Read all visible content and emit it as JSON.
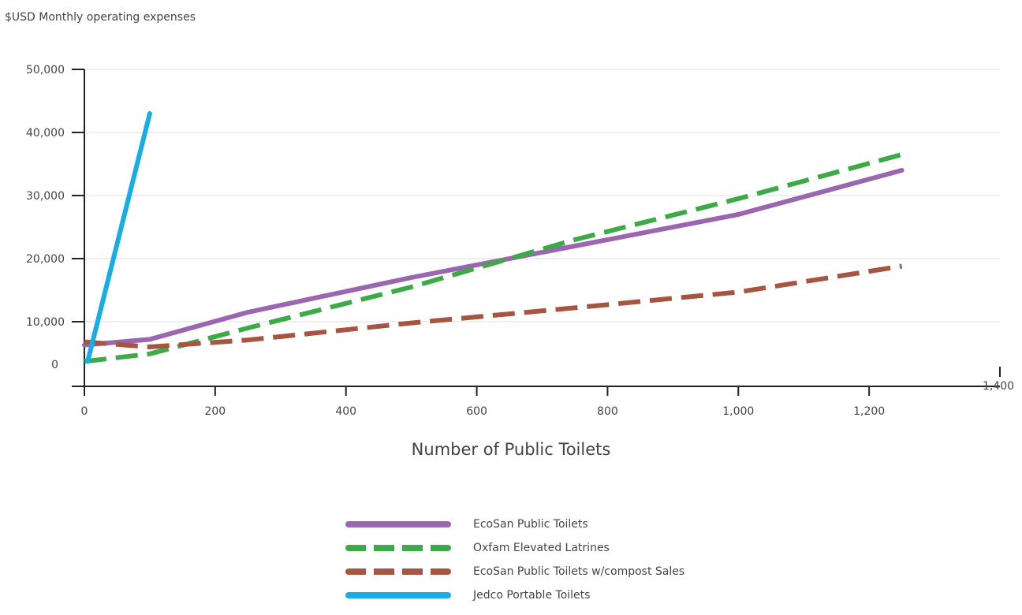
{
  "chart_data": {
    "type": "line",
    "ylabel": "$USD Monthly operating expenses",
    "xlabel": "Number of Public Toilets",
    "xlim": [
      0,
      1400
    ],
    "ylim": [
      0,
      50000
    ],
    "x_ticks": [
      0,
      200,
      400,
      600,
      800,
      1000,
      1200,
      1400
    ],
    "x_tick_labels": [
      "0",
      "200",
      "400",
      "600",
      "800",
      "1,000",
      "1,200",
      "1,400"
    ],
    "y_ticks": [
      0,
      10000,
      20000,
      30000,
      40000,
      50000
    ],
    "y_tick_labels": [
      "0",
      "10,000",
      "20,000",
      "30,000",
      "40,000",
      "50,000"
    ],
    "grid": true,
    "legend_position": "bottom-center",
    "series": [
      {
        "name": "EcoSan Public Toilets",
        "color": "#9b66b0",
        "style": "solid",
        "points": [
          [
            0,
            6300
          ],
          [
            100,
            7200
          ],
          [
            250,
            11500
          ],
          [
            500,
            17000
          ],
          [
            750,
            22000
          ],
          [
            1000,
            27000
          ],
          [
            1250,
            34000
          ]
        ]
      },
      {
        "name": "Oxfam Elevated Latrines",
        "color": "#3daa48",
        "style": "dashed",
        "points": [
          [
            0,
            3700
          ],
          [
            100,
            4900
          ],
          [
            250,
            9000
          ],
          [
            500,
            15500
          ],
          [
            750,
            23000
          ],
          [
            1000,
            29500
          ],
          [
            1250,
            36500
          ]
        ]
      },
      {
        "name": "EcoSan Public Toilets w/compost Sales",
        "color": "#a65540",
        "style": "dashed",
        "points": [
          [
            0,
            6800
          ],
          [
            100,
            6000
          ],
          [
            250,
            7100
          ],
          [
            500,
            9800
          ],
          [
            750,
            12200
          ],
          [
            1000,
            14700
          ],
          [
            1250,
            18800
          ]
        ]
      },
      {
        "name": "Jedco Portable Toilets",
        "color": "#16aee5",
        "style": "solid",
        "points": [
          [
            5,
            3700
          ],
          [
            100,
            43000
          ]
        ]
      }
    ]
  }
}
